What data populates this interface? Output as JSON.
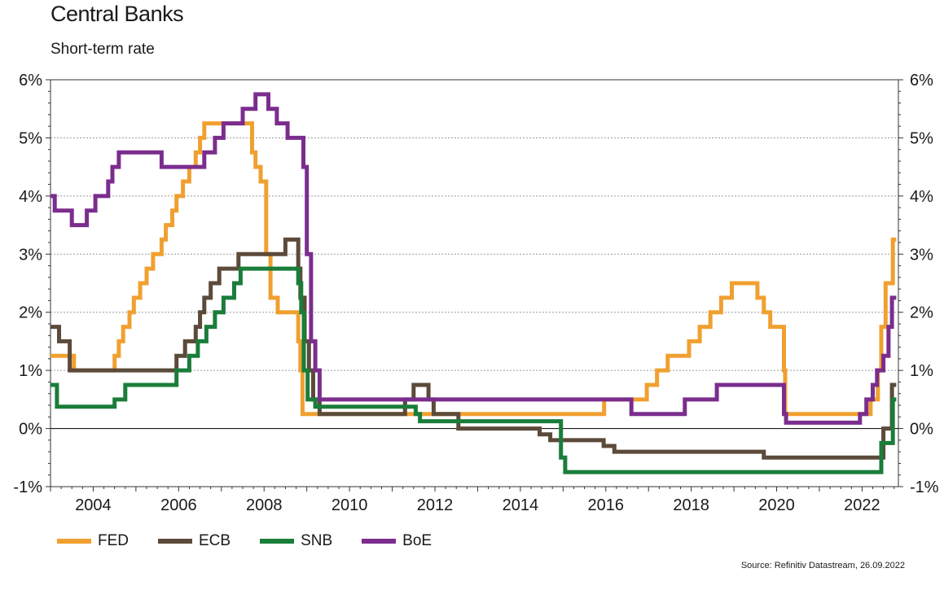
{
  "title": "Central Banks",
  "subtitle": "Short-term rate",
  "source": "Source: Refinitiv Datastream, 26.09.2022",
  "chart_data": {
    "type": "line",
    "xlim": [
      2003.0,
      2022.85
    ],
    "ylim": [
      -1,
      6
    ],
    "x_ticks": [
      2004,
      2006,
      2008,
      2010,
      2012,
      2014,
      2016,
      2018,
      2020,
      2022
    ],
    "x_tick_labels": [
      "2004",
      "2006",
      "2008",
      "2010",
      "2012",
      "2014",
      "2016",
      "2018",
      "2020",
      "2022"
    ],
    "y_ticks": [
      -1,
      0,
      1,
      2,
      3,
      4,
      5,
      6
    ],
    "y_tick_labels": [
      "-1%",
      "0%",
      "1%",
      "2%",
      "3%",
      "4%",
      "5%",
      "6%"
    ],
    "grid": "horizontal dotted",
    "legend_position": "bottom-left",
    "series": [
      {
        "name": "FED",
        "color": "#f0a030",
        "points": [
          [
            2003.0,
            1.25
          ],
          [
            2003.55,
            1.0
          ],
          [
            2004.5,
            1.25
          ],
          [
            2004.6,
            1.5
          ],
          [
            2004.7,
            1.75
          ],
          [
            2004.85,
            2.0
          ],
          [
            2004.95,
            2.25
          ],
          [
            2005.1,
            2.5
          ],
          [
            2005.25,
            2.75
          ],
          [
            2005.4,
            3.0
          ],
          [
            2005.6,
            3.25
          ],
          [
            2005.7,
            3.5
          ],
          [
            2005.85,
            3.75
          ],
          [
            2005.95,
            4.0
          ],
          [
            2006.1,
            4.25
          ],
          [
            2006.25,
            4.5
          ],
          [
            2006.4,
            4.75
          ],
          [
            2006.5,
            5.0
          ],
          [
            2006.6,
            5.25
          ],
          [
            2007.7,
            5.25
          ],
          [
            2007.72,
            4.75
          ],
          [
            2007.8,
            4.5
          ],
          [
            2007.92,
            4.25
          ],
          [
            2008.05,
            3.0
          ],
          [
            2008.15,
            2.25
          ],
          [
            2008.32,
            2.0
          ],
          [
            2008.8,
            1.5
          ],
          [
            2008.85,
            1.0
          ],
          [
            2008.9,
            0.25
          ],
          [
            2015.95,
            0.25
          ],
          [
            2015.96,
            0.5
          ],
          [
            2016.95,
            0.5
          ],
          [
            2016.96,
            0.75
          ],
          [
            2017.2,
            1.0
          ],
          [
            2017.45,
            1.25
          ],
          [
            2017.95,
            1.5
          ],
          [
            2018.2,
            1.75
          ],
          [
            2018.45,
            2.0
          ],
          [
            2018.7,
            2.25
          ],
          [
            2018.95,
            2.5
          ],
          [
            2019.55,
            2.25
          ],
          [
            2019.7,
            2.0
          ],
          [
            2019.85,
            1.75
          ],
          [
            2020.17,
            1.0
          ],
          [
            2020.2,
            0.25
          ],
          [
            2022.2,
            0.5
          ],
          [
            2022.37,
            1.0
          ],
          [
            2022.45,
            1.75
          ],
          [
            2022.55,
            2.5
          ],
          [
            2022.72,
            3.25
          ]
        ]
      },
      {
        "name": "ECB",
        "color": "#5c4a3a",
        "points": [
          [
            2003.0,
            1.75
          ],
          [
            2003.2,
            1.5
          ],
          [
            2003.45,
            1.0
          ],
          [
            2005.95,
            1.25
          ],
          [
            2006.15,
            1.5
          ],
          [
            2006.4,
            1.75
          ],
          [
            2006.5,
            2.0
          ],
          [
            2006.6,
            2.25
          ],
          [
            2006.75,
            2.5
          ],
          [
            2006.95,
            2.75
          ],
          [
            2007.4,
            3.0
          ],
          [
            2008.5,
            3.25
          ],
          [
            2008.8,
            2.75
          ],
          [
            2008.85,
            2.25
          ],
          [
            2008.95,
            1.5
          ],
          [
            2009.05,
            1.0
          ],
          [
            2009.15,
            0.5
          ],
          [
            2009.3,
            0.25
          ],
          [
            2011.3,
            0.5
          ],
          [
            2011.5,
            0.75
          ],
          [
            2011.85,
            0.5
          ],
          [
            2011.97,
            0.25
          ],
          [
            2012.55,
            0.0
          ],
          [
            2014.45,
            -0.1
          ],
          [
            2014.7,
            -0.2
          ],
          [
            2015.95,
            -0.3
          ],
          [
            2016.2,
            -0.4
          ],
          [
            2019.7,
            -0.5
          ],
          [
            2022.5,
            0.0
          ],
          [
            2022.7,
            0.75
          ]
        ]
      },
      {
        "name": "SNB",
        "color": "#1a7d3a",
        "points": [
          [
            2003.0,
            0.75
          ],
          [
            2003.15,
            0.375
          ],
          [
            2004.5,
            0.5
          ],
          [
            2004.75,
            0.75
          ],
          [
            2005.95,
            1.0
          ],
          [
            2006.25,
            1.25
          ],
          [
            2006.45,
            1.5
          ],
          [
            2006.65,
            1.75
          ],
          [
            2006.85,
            2.0
          ],
          [
            2007.05,
            2.25
          ],
          [
            2007.3,
            2.5
          ],
          [
            2007.45,
            2.75
          ],
          [
            2008.8,
            2.5
          ],
          [
            2008.87,
            2.0
          ],
          [
            2008.93,
            1.0
          ],
          [
            2009.02,
            0.5
          ],
          [
            2009.2,
            0.375
          ],
          [
            2011.55,
            0.25
          ],
          [
            2011.65,
            0.125
          ],
          [
            2014.95,
            -0.5
          ],
          [
            2015.05,
            -0.75
          ],
          [
            2022.45,
            -0.25
          ],
          [
            2022.72,
            0.5
          ]
        ]
      },
      {
        "name": "BoE",
        "color": "#7b2d8e",
        "points": [
          [
            2003.0,
            4.0
          ],
          [
            2003.1,
            3.75
          ],
          [
            2003.5,
            3.5
          ],
          [
            2003.85,
            3.75
          ],
          [
            2004.05,
            4.0
          ],
          [
            2004.35,
            4.25
          ],
          [
            2004.45,
            4.5
          ],
          [
            2004.6,
            4.75
          ],
          [
            2005.6,
            4.5
          ],
          [
            2006.6,
            4.75
          ],
          [
            2006.85,
            5.0
          ],
          [
            2007.05,
            5.25
          ],
          [
            2007.5,
            5.5
          ],
          [
            2007.8,
            5.75
          ],
          [
            2008.1,
            5.5
          ],
          [
            2008.3,
            5.25
          ],
          [
            2008.55,
            5.0
          ],
          [
            2008.92,
            4.5
          ],
          [
            2009.0,
            3.0
          ],
          [
            2009.1,
            1.5
          ],
          [
            2009.2,
            1.0
          ],
          [
            2009.3,
            0.5
          ],
          [
            2016.6,
            0.25
          ],
          [
            2017.85,
            0.5
          ],
          [
            2018.6,
            0.75
          ],
          [
            2020.17,
            0.25
          ],
          [
            2020.22,
            0.1
          ],
          [
            2021.95,
            0.25
          ],
          [
            2022.1,
            0.5
          ],
          [
            2022.25,
            0.75
          ],
          [
            2022.35,
            1.0
          ],
          [
            2022.5,
            1.25
          ],
          [
            2022.62,
            1.75
          ],
          [
            2022.7,
            2.25
          ]
        ]
      }
    ]
  }
}
